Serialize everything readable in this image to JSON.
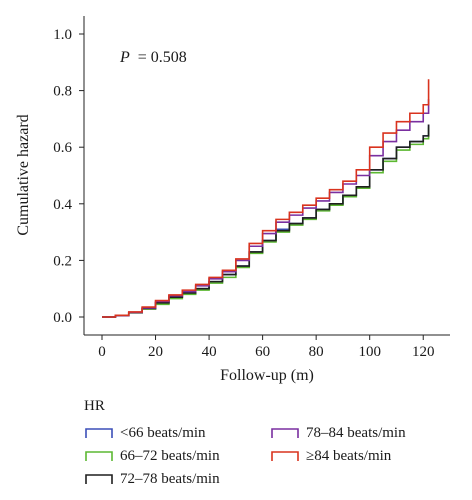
{
  "chart_data": {
    "type": "line",
    "step": true,
    "xlabel": "Follow-up (m)",
    "ylabel": "Cumulative hazard",
    "xlim": [
      0,
      130
    ],
    "ylim": [
      0,
      1.0
    ],
    "xticks": [
      0,
      20,
      40,
      60,
      80,
      100,
      120
    ],
    "yticks": [
      0.0,
      0.2,
      0.4,
      0.6,
      0.8,
      1.0
    ],
    "ytick_labels": [
      "0.0",
      "0.2",
      "0.4",
      "0.6",
      "0.8",
      "1.0"
    ],
    "grid": false,
    "legend_placement": "bottom",
    "annotation": {
      "p_label": "P",
      "p_value": "= 0.508"
    },
    "legend_title": "HR",
    "x": [
      0,
      5,
      10,
      15,
      20,
      25,
      30,
      35,
      40,
      45,
      50,
      55,
      60,
      65,
      70,
      75,
      80,
      85,
      90,
      95,
      100,
      105,
      110,
      115,
      120,
      122
    ],
    "series": [
      {
        "name": "<66 beats/min",
        "color": "#3b4fb8",
        "values": [
          0.0,
          0.005,
          0.015,
          0.03,
          0.05,
          0.07,
          0.085,
          0.1,
          0.125,
          0.15,
          0.18,
          0.23,
          0.27,
          0.31,
          0.33,
          0.35,
          0.38,
          0.4,
          0.43,
          0.46,
          0.52,
          0.56,
          0.6,
          0.62,
          0.64,
          0.68
        ]
      },
      {
        "name": "66–72 beats/min",
        "color": "#5cb832",
        "values": [
          0.0,
          0.005,
          0.015,
          0.028,
          0.045,
          0.065,
          0.08,
          0.095,
          0.12,
          0.14,
          0.175,
          0.225,
          0.265,
          0.3,
          0.325,
          0.345,
          0.375,
          0.395,
          0.425,
          0.455,
          0.51,
          0.55,
          0.59,
          0.61,
          0.63,
          0.67
        ]
      },
      {
        "name": "72–78 beats/min",
        "color": "#1f1f1f",
        "values": [
          0.0,
          0.005,
          0.015,
          0.03,
          0.05,
          0.07,
          0.085,
          0.1,
          0.125,
          0.15,
          0.18,
          0.23,
          0.27,
          0.305,
          0.33,
          0.35,
          0.38,
          0.4,
          0.43,
          0.46,
          0.52,
          0.56,
          0.6,
          0.62,
          0.64,
          0.68
        ]
      },
      {
        "name": "78–84 beats/min",
        "color": "#7a2fa0",
        "values": [
          0.0,
          0.005,
          0.017,
          0.032,
          0.055,
          0.075,
          0.09,
          0.11,
          0.135,
          0.16,
          0.2,
          0.25,
          0.295,
          0.335,
          0.36,
          0.385,
          0.41,
          0.44,
          0.47,
          0.5,
          0.57,
          0.62,
          0.66,
          0.69,
          0.72,
          0.77
        ]
      },
      {
        "name": "≥84 beats/min",
        "color": "#d9331e",
        "values": [
          0.0,
          0.006,
          0.018,
          0.035,
          0.058,
          0.078,
          0.095,
          0.115,
          0.14,
          0.165,
          0.205,
          0.26,
          0.305,
          0.345,
          0.37,
          0.395,
          0.42,
          0.45,
          0.48,
          0.52,
          0.6,
          0.65,
          0.69,
          0.72,
          0.75,
          0.84
        ]
      }
    ]
  }
}
